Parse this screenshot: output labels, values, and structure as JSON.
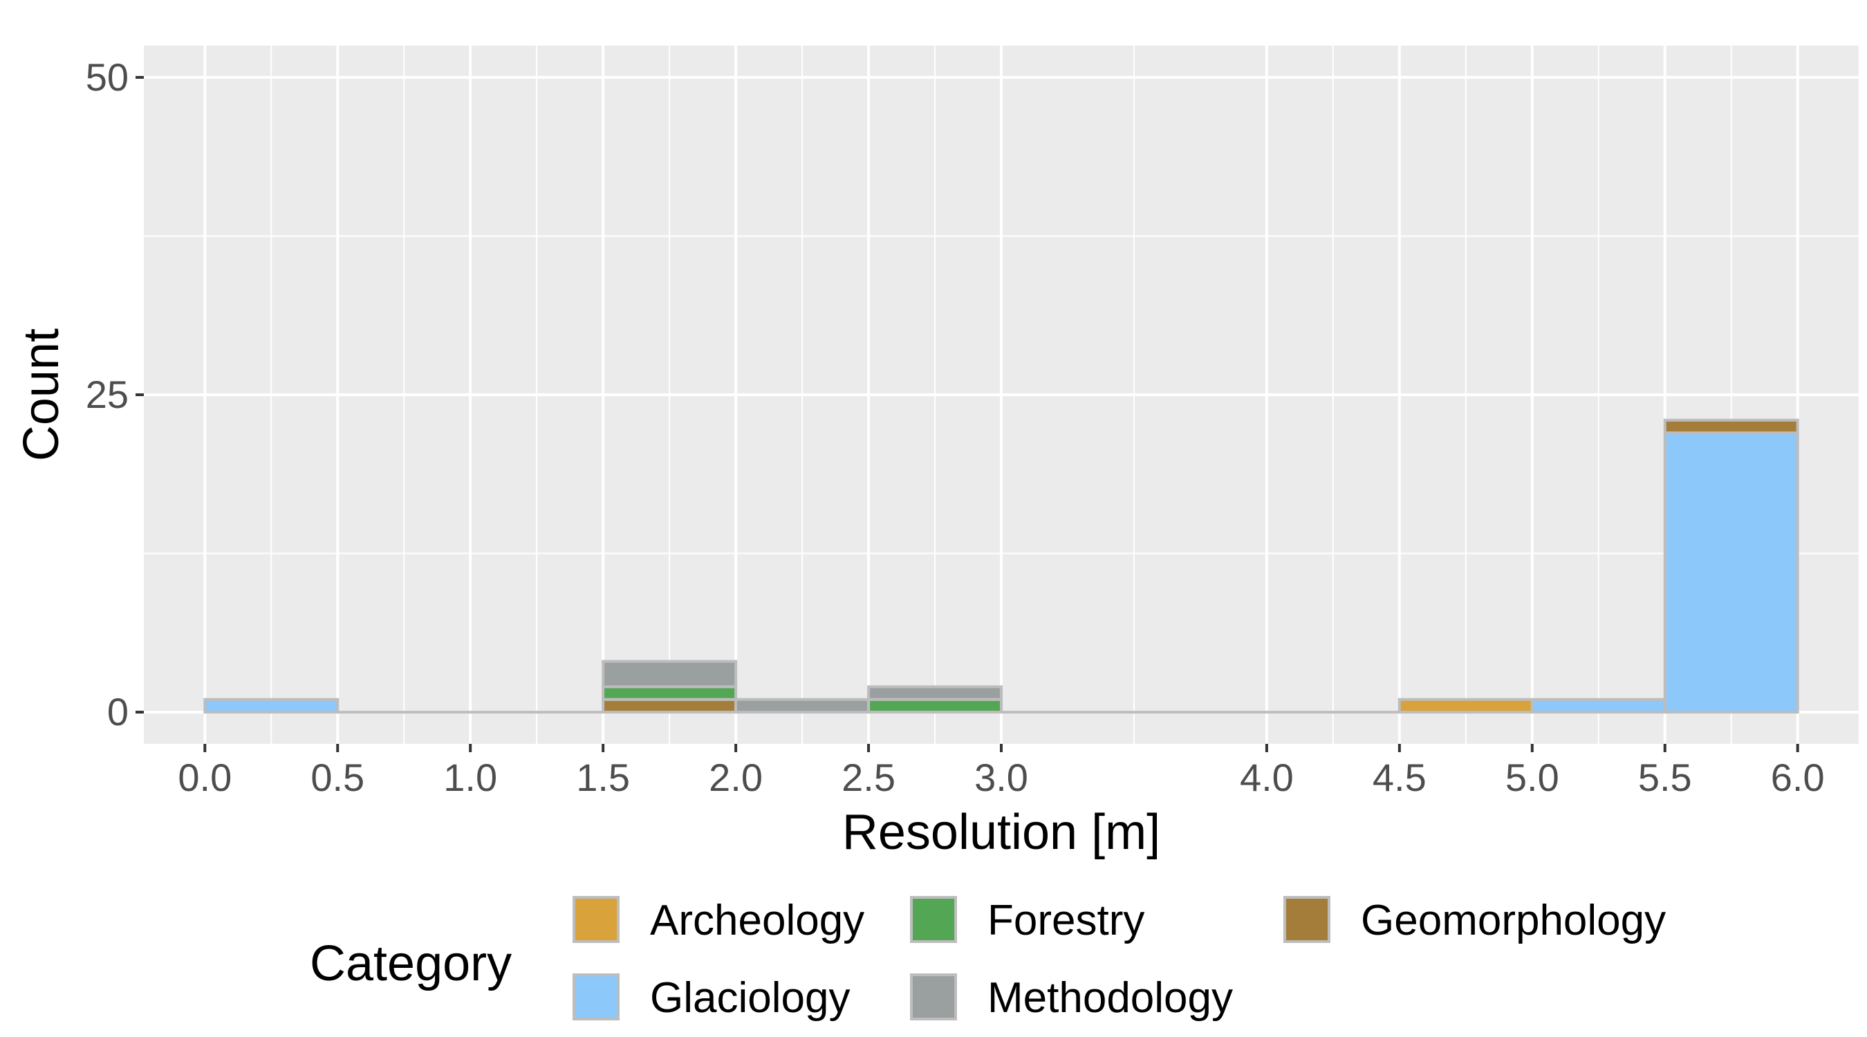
{
  "chart_data": {
    "type": "bar",
    "subtype": "stacked-histogram",
    "xlabel": "Resolution [m]",
    "ylabel": "Count",
    "xlim": [
      -0.23,
      6.23
    ],
    "ylim": [
      -2.5,
      52.5
    ],
    "x_ticks": [
      {
        "value": 0.0,
        "label": "0.0"
      },
      {
        "value": 0.5,
        "label": "0.5"
      },
      {
        "value": 1.0,
        "label": "1.0"
      },
      {
        "value": 1.5,
        "label": "1.5"
      },
      {
        "value": 2.0,
        "label": "2.0"
      },
      {
        "value": 2.5,
        "label": "2.5"
      },
      {
        "value": 3.0,
        "label": "3.0"
      },
      {
        "value": 4.0,
        "label": "4.0"
      },
      {
        "value": 4.5,
        "label": "4.5"
      },
      {
        "value": 5.0,
        "label": "5.0"
      },
      {
        "value": 5.5,
        "label": "5.5"
      },
      {
        "value": 6.0,
        "label": "6.0"
      }
    ],
    "x_minor_breaks": [
      0.25,
      0.75,
      1.25,
      1.75,
      2.25,
      2.75,
      3.5,
      4.25,
      4.75,
      5.25,
      5.75
    ],
    "y_ticks": [
      {
        "value": 0,
        "label": "0"
      },
      {
        "value": 25,
        "label": "25"
      },
      {
        "value": 50,
        "label": "50"
      }
    ],
    "y_minor_breaks": [
      12.5,
      37.5
    ],
    "grid": true,
    "legend_title": "Category",
    "legend_position": "bottom",
    "series": [
      {
        "name": "Archeology",
        "color": "#D9A23A",
        "bins": [
          {
            "x0": 4.5,
            "x1": 5.0,
            "count": 1
          }
        ]
      },
      {
        "name": "Forestry",
        "color": "#53A653",
        "bins": [
          {
            "x0": 1.5,
            "x1": 2.0,
            "count": 1
          },
          {
            "x0": 2.5,
            "x1": 3.0,
            "count": 1
          }
        ]
      },
      {
        "name": "Geomorphology",
        "color": "#A57D3A",
        "bins": [
          {
            "x0": 1.5,
            "x1": 2.0,
            "count": 1
          },
          {
            "x0": 5.5,
            "x1": 6.0,
            "count": 1
          }
        ]
      },
      {
        "name": "Glaciology",
        "color": "#8CC8FA",
        "bins": [
          {
            "x0": 0.0,
            "x1": 0.5,
            "count": 1
          },
          {
            "x0": 5.0,
            "x1": 5.5,
            "count": 1
          },
          {
            "x0": 5.5,
            "x1": 6.0,
            "count": 22
          }
        ]
      },
      {
        "name": "Methodology",
        "color": "#9AA0A0",
        "bins": [
          {
            "x0": 1.5,
            "x1": 2.0,
            "count": 2
          },
          {
            "x0": 2.0,
            "x1": 2.5,
            "count": 1
          },
          {
            "x0": 2.5,
            "x1": 3.0,
            "count": 1
          }
        ]
      }
    ],
    "stack_order_bottom_to_top": [
      "Glaciology",
      "Archeology",
      "Geomorphology",
      "Forestry",
      "Methodology"
    ],
    "legend_order": [
      "Archeology",
      "Forestry",
      "Geomorphology",
      "Glaciology",
      "Methodology"
    ]
  }
}
